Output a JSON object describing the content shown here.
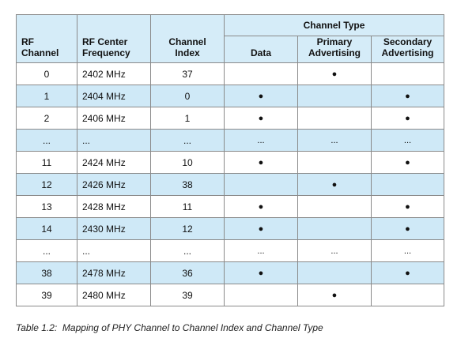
{
  "table": {
    "group_header": "Channel Type",
    "columns": [
      "RF\nChannel",
      "RF Center\nFrequency",
      "Channel\nIndex",
      "Data",
      "Primary\nAdvertising",
      "Secondary\nAdvertising"
    ],
    "rows": [
      [
        "0",
        "2402 MHz",
        "37",
        null,
        "●",
        null
      ],
      [
        "1",
        "2404 MHz",
        "0",
        "●",
        null,
        "●"
      ],
      [
        "2",
        "2406 MHz",
        "1",
        "●",
        null,
        "●"
      ],
      [
        "...",
        "...",
        "...",
        "...",
        "...",
        "..."
      ],
      [
        "11",
        "2424 MHz",
        "10",
        "●",
        null,
        "●"
      ],
      [
        "12",
        "2426 MHz",
        "38",
        null,
        "●",
        null
      ],
      [
        "13",
        "2428 MHz",
        "11",
        "●",
        null,
        "●"
      ],
      [
        "14",
        "2430 MHz",
        "12",
        "●",
        null,
        "●"
      ],
      [
        "...",
        "...",
        "...",
        "...",
        "...",
        "..."
      ],
      [
        "38",
        "2478 MHz",
        "36",
        "●",
        null,
        "●"
      ],
      [
        "39",
        "2480 MHz",
        "39",
        null,
        "●",
        null
      ]
    ]
  },
  "caption": "Table 1.2:  Mapping of PHY Channel to Channel Index and Channel Type"
}
